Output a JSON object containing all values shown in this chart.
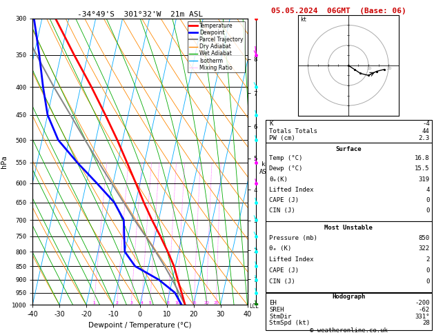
{
  "title_left": "-34°49'S  301°32'W  21m ASL",
  "title_right": "05.05.2024  06GMT  (Base: 06)",
  "xlabel": "Dewpoint / Temperature (°C)",
  "ylabel_left": "hPa",
  "stats": {
    "K": -4,
    "Totals_Totals": 44,
    "PW_cm": 2.3,
    "Surface_Temp": 16.8,
    "Surface_Dewp": 15.5,
    "theta_e": 319,
    "Lifted_Index": 4,
    "CAPE": 0,
    "CIN": 0,
    "MU_Pressure": 850,
    "MU_theta_e": 322,
    "MU_Lifted_Index": 2,
    "MU_CAPE": 0,
    "MU_CIN": 0,
    "EH": -200,
    "SREH": -62,
    "StmDir": 331,
    "StmSpd": 28
  },
  "temp_profile_p": [
    1000,
    950,
    900,
    850,
    800,
    750,
    700,
    650,
    600,
    550,
    500,
    450,
    400,
    350,
    300
  ],
  "temp_profile_t": [
    16.8,
    14.5,
    12.0,
    9.5,
    6.0,
    2.0,
    -2.5,
    -7.0,
    -11.5,
    -16.5,
    -22.0,
    -28.5,
    -36.0,
    -45.0,
    -55.0
  ],
  "dewp_profile_t": [
    15.5,
    12.0,
    5.0,
    -5.0,
    -10.0,
    -11.5,
    -13.0,
    -18.0,
    -26.0,
    -35.0,
    -44.0,
    -50.0,
    -54.0,
    -58.0,
    -63.0
  ],
  "parcel_profile_t": [
    16.8,
    13.5,
    10.0,
    6.0,
    1.5,
    -3.5,
    -9.0,
    -14.5,
    -20.5,
    -27.0,
    -34.0,
    -41.5,
    -50.0,
    -59.0,
    -69.0
  ],
  "pressure_levels": [
    300,
    350,
    400,
    450,
    500,
    550,
    600,
    650,
    700,
    750,
    800,
    850,
    900,
    950,
    1000
  ],
  "xlim": [
    -40,
    40
  ],
  "pmin": 300,
  "pmax": 1000,
  "skew_factor": 45,
  "temp_color": "#ff0000",
  "dewp_color": "#0000ff",
  "parcel_color": "#888888",
  "dry_adiabat_color": "#ff8800",
  "wet_adiabat_color": "#00aa00",
  "isotherm_color": "#00aaff",
  "mixing_ratio_color": "#ff00ff",
  "km_ticks": [
    1,
    2,
    3,
    4,
    5,
    6,
    7,
    8
  ],
  "mixing_ratios": [
    1,
    2,
    3,
    4,
    5,
    8,
    10,
    15,
    20,
    25
  ],
  "lcl_label": "LCL",
  "copyright": "© weatheronline.co.uk"
}
